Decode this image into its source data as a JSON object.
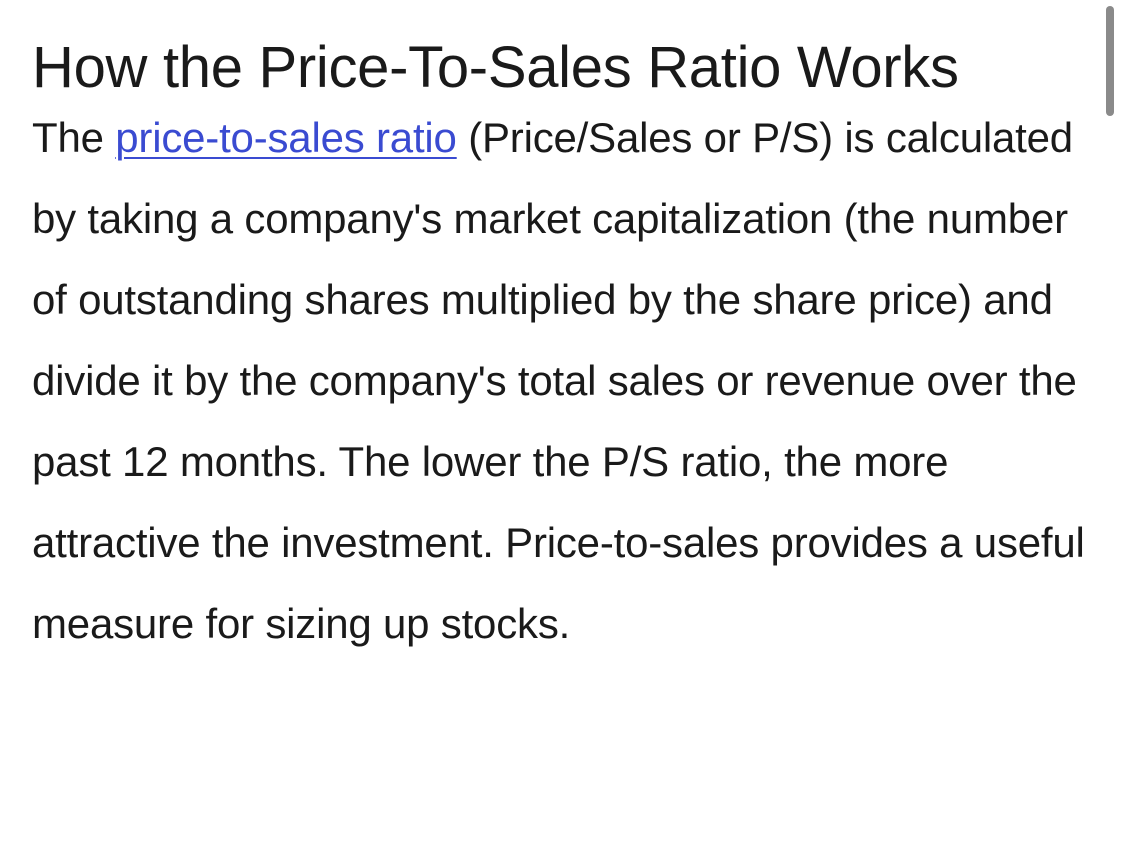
{
  "article": {
    "heading": "How the Price-To-Sales Ratio Works",
    "paragraph": {
      "before_link": "The ",
      "link_text": "price-to-sales ratio",
      "after_link": " (Price/Sales or P/S) is calculated by taking a company's market capitalization (the number of outstanding shares multiplied by the share price) and divide it by the company's total sales or revenue over the past 12 months. The lower the P/S ratio, the more attractive the investment. Price-to-sales provides a useful measure for sizing up stocks."
    }
  },
  "colors": {
    "text": "#1a1a1a",
    "link": "#3a4bd1",
    "background": "#ffffff",
    "scrollbar": "#8a8a8a"
  }
}
